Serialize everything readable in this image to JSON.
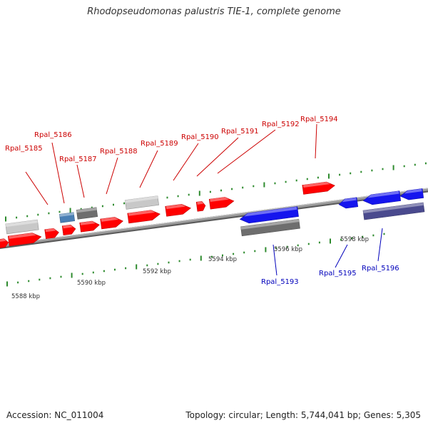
{
  "header": {
    "title": "Rhodopseudomonas palustris TIE-1, complete genome"
  },
  "footer": {
    "accession": "Accession: NC_011004",
    "summary": "Topology: circular; Length: 5,744,041 bp; Genes: 5,305"
  },
  "scale_labels": [
    "5588 kbp",
    "5590 kbp",
    "5592 kbp",
    "5594 kbp",
    "5596 kbp",
    "5598 kbp"
  ],
  "gene_labels": {
    "forward": [
      "Rpal_5185",
      "Rpal_5186",
      "Rpal_5187",
      "Rpal_5188",
      "Rpal_5189",
      "Rpal_5190",
      "Rpal_5191",
      "Rpal_5192",
      "Rpal_5194"
    ],
    "reverse": [
      "Rpal_5193",
      "Rpal_5195",
      "Rpal_5196"
    ]
  },
  "colors": {
    "forward_gene": "#ff0000",
    "reverse_gene": "#1515ee",
    "forward_label": "#cc0000",
    "reverse_label": "#0000bb",
    "backbone": "#8a8a8a",
    "tick": "#2e8b2e",
    "light_gray_feature": "#c8c8c8",
    "dark_gray_feature": "#6e6e6e",
    "steel_blue_feature": "#4a7fb5",
    "slate_blue_feature": "#4a4a8e"
  }
}
